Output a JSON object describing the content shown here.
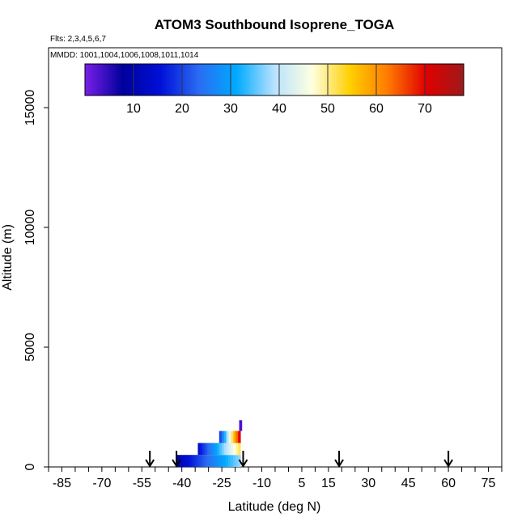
{
  "chart_data": {
    "type": "heatmap",
    "title": "ATOM3 Southbound Isoprene_TOGA",
    "flights_note": "Flts: 2,3,4,5,6,7",
    "dates_note": "MMDD: 1001,1004,1006,1008,1011,1014",
    "xlabel": "Latitude (deg N)",
    "ylabel": "Altitude (m)",
    "xlim": [
      -90,
      80
    ],
    "ylim": [
      0,
      17500
    ],
    "x_ticks": [
      -85,
      -70,
      -55,
      -40,
      -25,
      -10,
      5,
      15,
      30,
      45,
      60,
      75
    ],
    "y_ticks": [
      0,
      5000,
      10000,
      15000
    ],
    "grid": false,
    "colorbar": {
      "placement": "top",
      "range": [
        0,
        78
      ],
      "ticks": [
        10,
        20,
        30,
        40,
        50,
        60,
        70
      ],
      "colors": [
        "#7a1fe8",
        "#00009c",
        "#0010d8",
        "#2a6cf2",
        "#00aaff",
        "#b8e2ff",
        "#ffffe0",
        "#ffd000",
        "#ff7a00",
        "#e00000",
        "#9e1a1a"
      ]
    },
    "cells": [
      {
        "lat_min": -42,
        "lat_max": -18,
        "alt_min": 0,
        "alt_max": 500,
        "value": 24
      },
      {
        "lat_min": -34,
        "lat_max": -18,
        "alt_min": 500,
        "alt_max": 1000,
        "value": 33
      },
      {
        "lat_min": -26,
        "lat_max": -18,
        "alt_min": 1000,
        "alt_max": 1500,
        "value": 45
      },
      {
        "lat_min": -18.5,
        "lat_max": -17.5,
        "alt_min": 1500,
        "alt_max": 1950,
        "value": 3
      }
    ],
    "flight_arrows_lat": [
      -52,
      -42,
      -17,
      19,
      60
    ]
  }
}
